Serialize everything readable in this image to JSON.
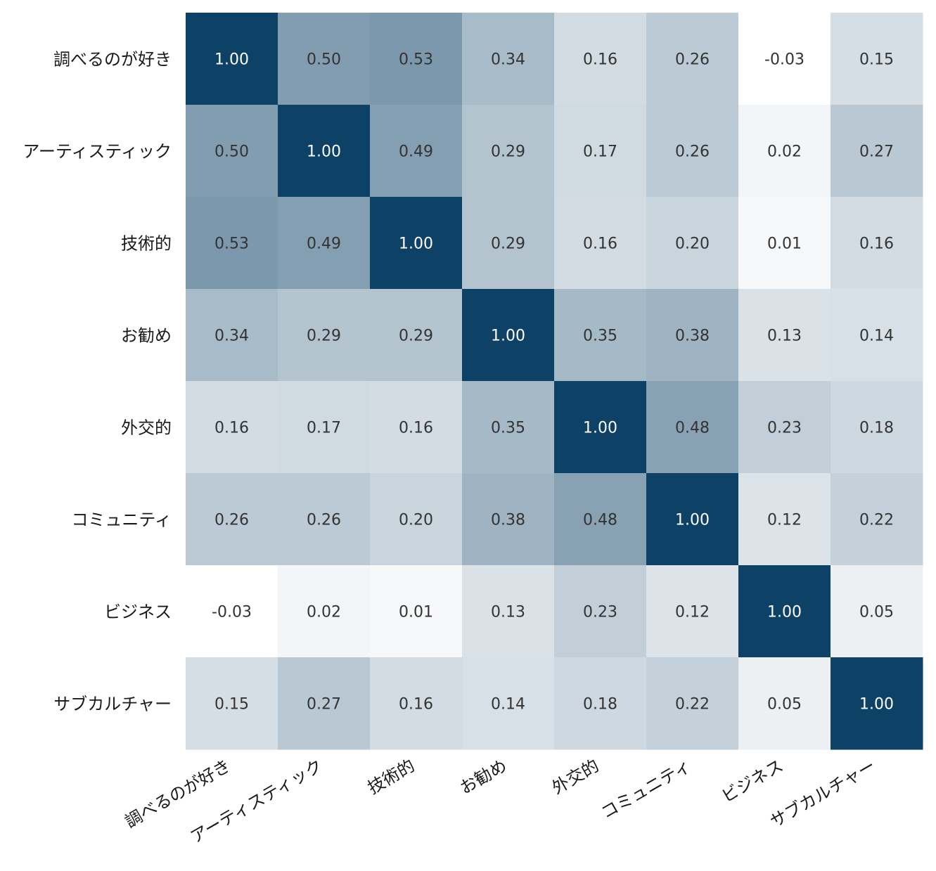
{
  "chart_data": {
    "type": "heatmap",
    "title": "",
    "xlabel": "",
    "ylabel": "",
    "row_labels": [
      "調べるのが好き",
      "アーティスティック",
      "技術的",
      "お勧め",
      "外交的",
      "コミュニティ",
      "ビジネス",
      "サブカルチャー"
    ],
    "col_labels": [
      "調べるのが好き",
      "アーティスティック",
      "技術的",
      "お勧め",
      "外交的",
      "コミュニティ",
      "ビジネス",
      "サブカルチャー"
    ],
    "values": [
      [
        1.0,
        0.5,
        0.53,
        0.34,
        0.16,
        0.26,
        -0.03,
        0.15
      ],
      [
        0.5,
        1.0,
        0.49,
        0.29,
        0.17,
        0.26,
        0.02,
        0.27
      ],
      [
        0.53,
        0.49,
        1.0,
        0.29,
        0.16,
        0.2,
        0.01,
        0.16
      ],
      [
        0.34,
        0.29,
        0.29,
        1.0,
        0.35,
        0.38,
        0.13,
        0.14
      ],
      [
        0.16,
        0.17,
        0.16,
        0.35,
        1.0,
        0.48,
        0.23,
        0.18
      ],
      [
        0.26,
        0.26,
        0.2,
        0.38,
        0.48,
        1.0,
        0.12,
        0.22
      ],
      [
        -0.03,
        0.02,
        0.01,
        0.13,
        0.23,
        0.12,
        1.0,
        0.05
      ],
      [
        0.15,
        0.27,
        0.16,
        0.14,
        0.18,
        0.22,
        0.05,
        1.0
      ]
    ],
    "value_labels": [
      [
        "1.00",
        "0.50",
        "0.53",
        "0.34",
        "0.16",
        "0.26",
        "-0.03",
        "0.15"
      ],
      [
        "0.50",
        "1.00",
        "0.49",
        "0.29",
        "0.17",
        "0.26",
        "0.02",
        "0.27"
      ],
      [
        "0.53",
        "0.49",
        "1.00",
        "0.29",
        "0.16",
        "0.20",
        "0.01",
        "0.16"
      ],
      [
        "0.34",
        "0.29",
        "0.29",
        "1.00",
        "0.35",
        "0.38",
        "0.13",
        "0.14"
      ],
      [
        "0.16",
        "0.17",
        "0.16",
        "0.35",
        "1.00",
        "0.48",
        "0.23",
        "0.18"
      ],
      [
        "0.26",
        "0.26",
        "0.20",
        "0.38",
        "0.48",
        "1.00",
        "0.12",
        "0.22"
      ],
      [
        "-0.03",
        "0.02",
        "0.01",
        "0.13",
        "0.23",
        "0.12",
        "1.00",
        "0.05"
      ],
      [
        "0.15",
        "0.27",
        "0.16",
        "0.14",
        "0.18",
        "0.22",
        "0.05",
        "1.00"
      ]
    ],
    "color_low": "#ffffff",
    "color_high": "#0e4166",
    "text_color_dark": "#333333",
    "text_color_light": "#ffffff",
    "grid": false,
    "legend": "none"
  }
}
